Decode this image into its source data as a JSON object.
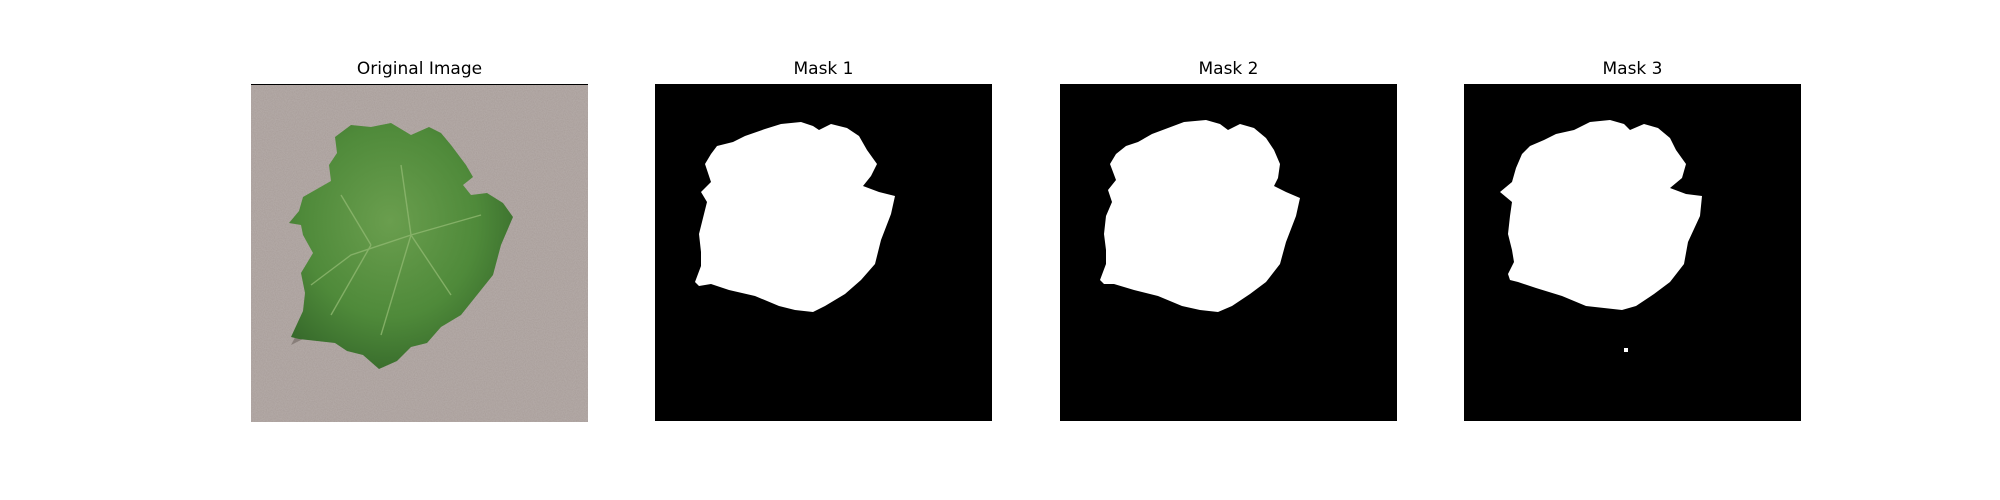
{
  "figure": {
    "panels": [
      {
        "title": "Original Image",
        "kind": "photo"
      },
      {
        "title": "Mask 1",
        "kind": "mask"
      },
      {
        "title": "Mask 2",
        "kind": "mask"
      },
      {
        "title": "Mask 3",
        "kind": "mask"
      }
    ],
    "colors": {
      "background": "#ffffff",
      "mask_background": "#000000",
      "mask_foreground": "#ffffff",
      "leaf_green": "#4f8a3a",
      "leaf_dark": "#2f5f25",
      "surface_gray": "#a79c98"
    }
  }
}
